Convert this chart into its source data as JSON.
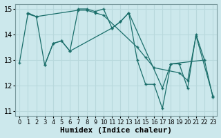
{
  "xlabel": "Humidex (Indice chaleur)",
  "background_color": "#cce8ec",
  "grid_color": "#b8d8dc",
  "line_color": "#1a6e6a",
  "xlim": [
    -0.5,
    23.5
  ],
  "ylim": [
    10.8,
    15.2
  ],
  "yticks": [
    11,
    12,
    13,
    14,
    15
  ],
  "xticks": [
    0,
    1,
    2,
    3,
    4,
    5,
    6,
    7,
    8,
    9,
    10,
    11,
    12,
    13,
    14,
    15,
    16,
    17,
    18,
    19,
    20,
    21,
    22,
    23
  ],
  "series1_x": [
    0,
    1,
    2,
    3,
    4,
    5,
    6,
    7,
    8,
    9,
    10,
    11,
    12,
    13,
    14,
    15,
    16,
    17,
    18,
    19,
    20,
    21,
    22,
    23
  ],
  "series1_y": [
    12.9,
    14.8,
    14.7,
    12.8,
    13.65,
    13.75,
    13.35,
    15.0,
    15.0,
    14.9,
    15.0,
    14.25,
    14.5,
    14.85,
    13.0,
    12.05,
    12.05,
    11.1,
    12.85,
    12.85,
    11.9,
    14.0,
    13.0,
    11.55
  ],
  "series2_x": [
    1,
    2,
    7,
    8,
    9,
    10,
    14,
    15,
    16,
    19,
    20,
    21,
    23
  ],
  "series2_y": [
    14.85,
    14.7,
    14.95,
    14.95,
    14.85,
    14.75,
    13.5,
    13.1,
    12.7,
    12.5,
    12.2,
    13.95,
    11.6
  ],
  "series3_x": [
    3,
    4,
    5,
    6,
    11,
    12,
    13,
    17,
    18,
    22
  ],
  "series3_y": [
    12.8,
    13.65,
    13.75,
    13.35,
    14.25,
    14.5,
    14.85,
    11.9,
    12.85,
    13.0
  ],
  "marker_size": 2.5,
  "font_size": 7
}
